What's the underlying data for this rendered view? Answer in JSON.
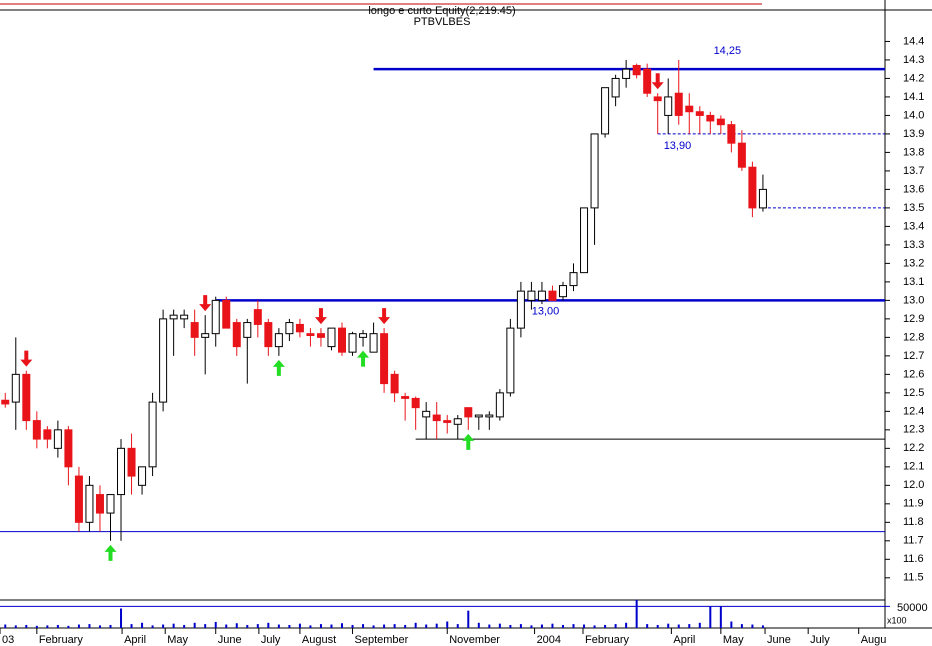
{
  "chart_data": {
    "type": "candlestick",
    "title": "longo e curto Equity(2,219.45)",
    "subtitle": "PTBVLBES",
    "up_color": "#ffffff",
    "down_color": "#e8141a",
    "xlim": [
      -0.5,
      83.6
    ],
    "ylim": [
      11.38,
      14.57
    ],
    "xticks": [
      {
        "value": -0.5,
        "label": "03"
      },
      {
        "value": 3,
        "label": "February"
      },
      {
        "value": 11.1,
        "label": "April"
      },
      {
        "value": 15.2,
        "label": "May"
      },
      {
        "value": 20,
        "label": "June"
      },
      {
        "value": 24.1,
        "label": "July"
      },
      {
        "value": 28,
        "label": "August"
      },
      {
        "value": 33,
        "label": "September"
      },
      {
        "value": 42,
        "label": "November"
      },
      {
        "value": 50.3,
        "label": "2004"
      },
      {
        "value": 54.9,
        "label": "February"
      },
      {
        "value": 63.3,
        "label": "April"
      },
      {
        "value": 68,
        "label": "May"
      },
      {
        "value": 72.2,
        "label": "June"
      },
      {
        "value": 76.3,
        "label": "July"
      },
      {
        "value": 81.1,
        "label": "Augu"
      }
    ],
    "yticks": [
      11.5,
      11.6,
      11.7,
      11.8,
      11.9,
      {
        "value": 12,
        "label": "12.0"
      },
      12.1,
      12.2,
      12.3,
      12.4,
      12.5,
      12.6,
      12.7,
      12.8,
      12.9,
      {
        "value": 13,
        "label": "13.0"
      },
      13.1,
      13.2,
      13.3,
      13.4,
      13.5,
      13.6,
      13.7,
      13.8,
      13.9,
      {
        "value": 14,
        "label": "14.0"
      },
      14.1,
      14.2,
      14.3,
      14.4
    ],
    "open": [
      12.46,
      12.45,
      12.6,
      12.35,
      12.3,
      12.2,
      12.3,
      12.05,
      11.8,
      11.95,
      11.85,
      11.95,
      12.2,
      12.0,
      12.1,
      12.45,
      12.9,
      12.9,
      12.88,
      12.8,
      12.82,
      13.0,
      12.88,
      12.8,
      12.95,
      12.88,
      12.75,
      12.82,
      12.87,
      12.82,
      12.82,
      12.75,
      12.85,
      12.72,
      12.8,
      12.72,
      12.82,
      12.6,
      12.48,
      12.47,
      12.37,
      12.38,
      12.35,
      12.33,
      12.42,
      12.37,
      12.37,
      12.37,
      12.5,
      12.85,
      13.0,
      13.0,
      13.05,
      13.02,
      13.08,
      13.15,
      13.5,
      13.9,
      14.1,
      14.2,
      14.27,
      14.25,
      14.1,
      14.0,
      14.12,
      14.05,
      14.02,
      14.0,
      13.98,
      13.95,
      13.85,
      13.72,
      13.5
    ],
    "high": [
      12.5,
      12.8,
      12.62,
      12.4,
      12.32,
      12.35,
      12.32,
      12.1,
      12.05,
      12.0,
      11.95,
      12.25,
      12.28,
      12.1,
      12.5,
      12.95,
      12.95,
      12.95,
      12.95,
      12.92,
      13.02,
      13.02,
      12.9,
      12.9,
      13.0,
      12.9,
      12.85,
      12.9,
      12.9,
      12.85,
      12.85,
      12.85,
      12.88,
      12.83,
      12.84,
      12.88,
      12.85,
      12.62,
      12.5,
      12.48,
      12.45,
      12.45,
      12.38,
      12.38,
      12.42,
      12.38,
      12.4,
      12.52,
      12.9,
      13.1,
      13.1,
      13.1,
      13.08,
      13.1,
      13.2,
      13.5,
      13.9,
      14.15,
      14.22,
      14.3,
      14.28,
      14.28,
      14.12,
      14.2,
      14.3,
      14.12,
      14.05,
      14.02,
      14.0,
      13.97,
      13.92,
      13.75,
      13.68
    ],
    "low": [
      12.42,
      12.3,
      12.3,
      12.2,
      12.2,
      12.15,
      12.0,
      11.75,
      11.75,
      11.75,
      11.7,
      11.7,
      11.95,
      11.95,
      12.05,
      12.4,
      12.7,
      12.85,
      12.7,
      12.6,
      12.75,
      12.85,
      12.7,
      12.55,
      12.8,
      12.7,
      12.7,
      12.78,
      12.8,
      12.75,
      12.75,
      12.73,
      12.7,
      12.7,
      12.75,
      12.72,
      12.5,
      12.45,
      12.35,
      12.3,
      12.25,
      12.25,
      12.28,
      12.25,
      12.3,
      12.3,
      12.3,
      12.35,
      12.48,
      12.8,
      12.95,
      12.98,
      13.0,
      13.0,
      13.05,
      13.15,
      13.3,
      13.88,
      14.05,
      14.15,
      14.2,
      14.1,
      13.9,
      13.9,
      13.95,
      13.9,
      13.9,
      13.9,
      13.9,
      13.8,
      13.7,
      13.45,
      13.48
    ],
    "close": [
      12.44,
      12.6,
      12.35,
      12.25,
      12.25,
      12.3,
      12.1,
      11.8,
      12.0,
      11.85,
      11.95,
      12.2,
      12.05,
      12.1,
      12.45,
      12.9,
      12.92,
      12.92,
      12.8,
      12.82,
      13.0,
      12.85,
      12.75,
      12.88,
      12.87,
      12.75,
      12.82,
      12.88,
      12.83,
      12.81,
      12.8,
      12.85,
      12.72,
      12.82,
      12.82,
      12.82,
      12.55,
      12.5,
      12.47,
      12.42,
      12.4,
      12.35,
      12.34,
      12.36,
      12.37,
      12.38,
      12.38,
      12.5,
      12.85,
      13.05,
      13.05,
      13.05,
      13.0,
      13.08,
      13.15,
      13.5,
      13.9,
      14.15,
      14.2,
      14.25,
      14.22,
      14.12,
      14.08,
      14.1,
      14.0,
      14.02,
      14.0,
      13.97,
      13.95,
      13.85,
      13.72,
      13.5,
      13.6
    ],
    "levels": [
      {
        "value": 14.25,
        "label": "14,25",
        "start": 35,
        "color": "#0000cc",
        "style": "thick"
      },
      {
        "value": 13,
        "label": "13,00",
        "start": 20,
        "color": "#0000cc",
        "style": "thick"
      },
      {
        "value": 13.9,
        "label": "13,90",
        "start": 62,
        "color": "#0000cc",
        "style": "dashed"
      },
      {
        "value": 13.5,
        "start": 72,
        "color": "#0000cc",
        "style": "dashed"
      },
      {
        "value": 12.25,
        "start": 39,
        "color": "#000000",
        "style": "thin"
      },
      {
        "value": 11.75,
        "start": -0.5,
        "color": "#0000cc",
        "style": "thin"
      }
    ],
    "sell_signals": [
      2,
      19,
      30,
      36,
      62
    ],
    "buy_signals": [
      10,
      26,
      34,
      44
    ],
    "volume": {
      "values": [
        8000,
        6000,
        7000,
        5000,
        6000,
        7000,
        5000,
        8000,
        9000,
        6000,
        7000,
        45000,
        9000,
        12000,
        6000,
        8000,
        10000,
        7000,
        12000,
        9000,
        14000,
        8000,
        11000,
        7000,
        9000,
        12000,
        8000,
        7000,
        10000,
        6000,
        9000,
        8000,
        11000,
        7000,
        9000,
        6000,
        8000,
        9000,
        7000,
        12000,
        8000,
        10000,
        15000,
        9000,
        40000,
        12000,
        8000,
        10000,
        7000,
        9000,
        6000,
        8000,
        10000,
        7000,
        9000,
        8000,
        6000,
        7000,
        9000,
        12000,
        65000,
        9000,
        7000,
        10000,
        8000,
        9000,
        12000,
        50000,
        50000,
        15000,
        9000,
        8000,
        6000
      ],
      "ylim": [
        0,
        60000
      ],
      "yticks": [
        50000
      ],
      "unit_label": "x100",
      "color": "#0000cc"
    }
  }
}
